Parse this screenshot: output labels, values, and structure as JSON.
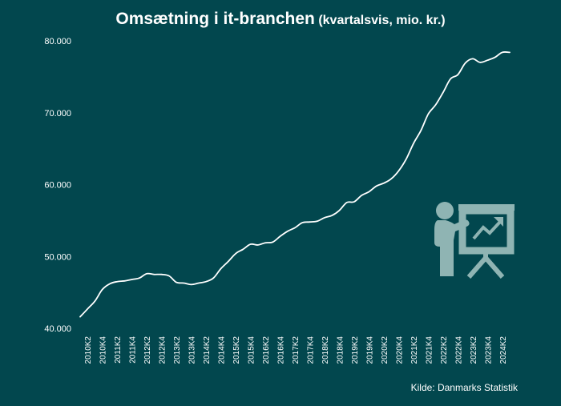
{
  "colors": {
    "background": "#02474e",
    "line": "#ffffff",
    "icon": "#8fb4b3"
  },
  "icon": "presenter-with-rising-chart-icon",
  "chart_data": {
    "type": "line",
    "title": "Omsætning i it-branchen",
    "subtitle": "(kvartalsvis, mio. kr.)",
    "source": "Kilde: Danmarks Statistik",
    "xlabel": "",
    "ylabel": "",
    "ylim": [
      40000,
      80000
    ],
    "yticks": [
      40000,
      50000,
      60000,
      70000,
      80000
    ],
    "ytick_labels": [
      "40.000",
      "50.000",
      "60.000",
      "70.000",
      "80.000"
    ],
    "grid": false,
    "legend": "none",
    "x_tick_labels": [
      "2010K2",
      "2010K4",
      "2011K2",
      "2011K4",
      "2012K2",
      "2012K4",
      "2013K2",
      "2013K4",
      "2014K2",
      "2014K4",
      "2015K2",
      "2015K4",
      "2016K2",
      "2016K4",
      "2017K2",
      "2017K4",
      "2018K2",
      "2018K4",
      "2019K2",
      "2019K4",
      "2020K2",
      "2020K4",
      "2021K2",
      "2021K4",
      "2022K2",
      "2022K4",
      "2023K2",
      "2023K4",
      "2024K2"
    ],
    "series": [
      {
        "x": [
          "2010K1",
          "2010K2",
          "2010K3",
          "2010K4",
          "2011K1",
          "2011K2",
          "2011K3",
          "2011K4",
          "2012K1",
          "2012K2",
          "2012K3",
          "2012K4",
          "2013K1",
          "2013K2",
          "2013K3",
          "2013K4",
          "2014K1",
          "2014K2",
          "2014K3",
          "2014K4",
          "2015K1",
          "2015K2",
          "2015K3",
          "2015K4",
          "2016K1",
          "2016K2",
          "2016K3",
          "2016K4",
          "2017K1",
          "2017K2",
          "2017K3",
          "2017K4",
          "2018K1",
          "2018K2",
          "2018K3",
          "2018K4",
          "2019K1",
          "2019K2",
          "2019K3",
          "2019K4",
          "2020K1",
          "2020K2",
          "2020K3",
          "2020K4",
          "2021K1",
          "2021K2",
          "2021K3",
          "2021K4",
          "2022K1",
          "2022K2",
          "2022K3",
          "2022K4",
          "2023K1",
          "2023K2",
          "2023K3",
          "2023K4",
          "2024K1",
          "2024K2",
          "2024K3"
        ],
        "values": [
          41600,
          42700,
          43800,
          45400,
          46200,
          46500,
          46600,
          46800,
          47000,
          47600,
          47500,
          47500,
          47300,
          46400,
          46300,
          46100,
          46300,
          46500,
          47000,
          48300,
          49300,
          50400,
          51000,
          51700,
          51600,
          51900,
          52000,
          52800,
          53500,
          54000,
          54700,
          54800,
          54900,
          55400,
          55700,
          56400,
          57500,
          57600,
          58500,
          59000,
          59800,
          60200,
          60800,
          61900,
          63500,
          65700,
          67500,
          69800,
          71100,
          72800,
          74700,
          75300,
          76900,
          77500,
          77000,
          77300,
          77700,
          78400,
          78400
        ]
      }
    ]
  }
}
